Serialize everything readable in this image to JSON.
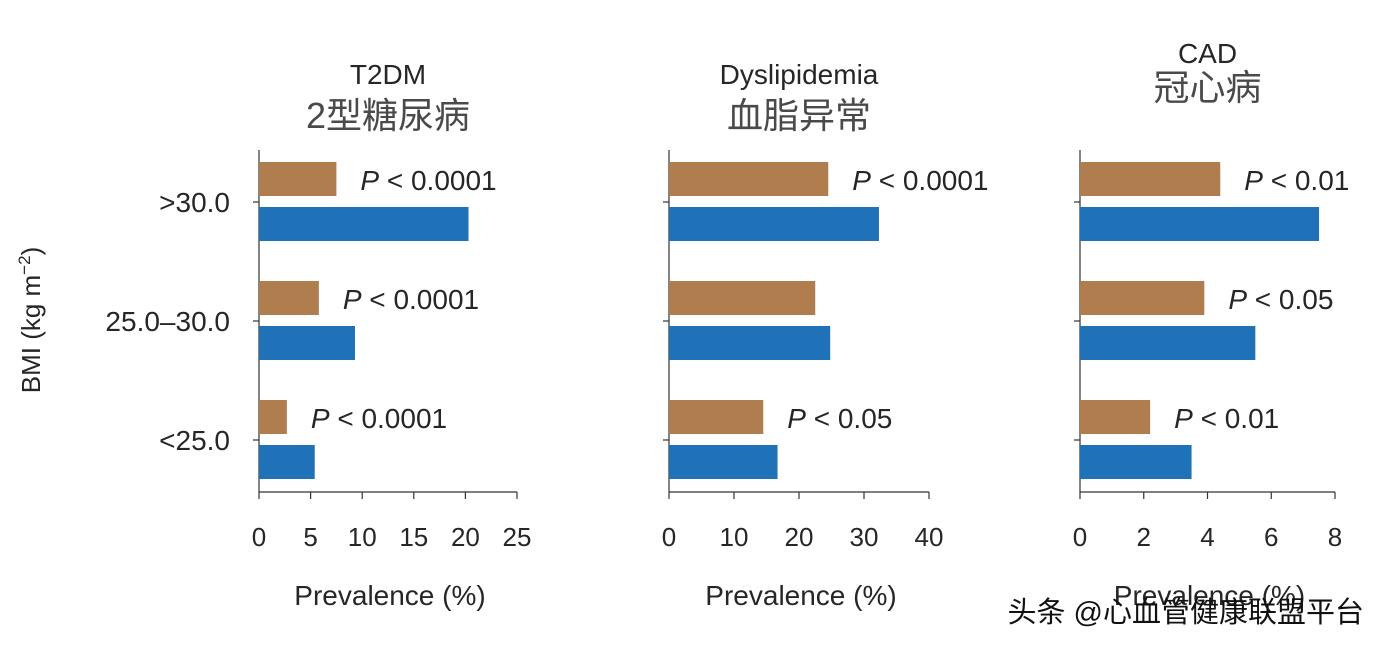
{
  "figure": {
    "ylabel_main": "BMI (kg m",
    "ylabel_sup": "−2",
    "ylabel_close": ")",
    "watermark": "头条 @心血管健康联盟平台"
  },
  "colors": {
    "brown": "#B07D4E",
    "blue": "#1F72B8",
    "axis": "#333333",
    "text": "#262626"
  },
  "categories": [
    ">30.0",
    "25.0–30.0",
    "<25.0"
  ],
  "chart_data": [
    {
      "type": "bar",
      "orientation": "horizontal",
      "title": "T2DM",
      "subtitle": "2型糖尿病",
      "categories": [
        ">30.0",
        "25.0–30.0",
        "<25.0"
      ],
      "series": [
        {
          "name": "brown series",
          "color": "#B07D4E",
          "values": [
            7.5,
            5.8,
            2.7
          ]
        },
        {
          "name": "blue series",
          "color": "#1F72B8",
          "values": [
            20.3,
            9.3,
            5.4
          ]
        }
      ],
      "pvalues": [
        "P < 0.0001",
        "P < 0.0001",
        "P < 0.0001"
      ],
      "xlim": [
        0,
        25
      ],
      "xticks": [
        0,
        5,
        10,
        15,
        20,
        25
      ],
      "xlabel": "Prevalence (%)"
    },
    {
      "type": "bar",
      "orientation": "horizontal",
      "title": "Dyslipidemia",
      "subtitle": "血脂异常",
      "categories": [
        ">30.0",
        "25.0–30.0",
        "<25.0"
      ],
      "series": [
        {
          "name": "brown series",
          "color": "#B07D4E",
          "values": [
            24.5,
            22.5,
            14.5
          ]
        },
        {
          "name": "blue series",
          "color": "#1F72B8",
          "values": [
            32.3,
            24.8,
            16.7
          ]
        }
      ],
      "pvalues": [
        "P < 0.0001",
        "",
        "P < 0.05"
      ],
      "xlim": [
        0,
        40
      ],
      "xticks": [
        0,
        10,
        20,
        30,
        40
      ],
      "xlabel": "Prevalence (%)"
    },
    {
      "type": "bar",
      "orientation": "horizontal",
      "title": "CAD",
      "subtitle": "冠心病",
      "categories": [
        ">30.0",
        "25.0–30.0",
        "<25.0"
      ],
      "series": [
        {
          "name": "brown series",
          "color": "#B07D4E",
          "values": [
            4.4,
            3.9,
            2.2
          ]
        },
        {
          "name": "blue series",
          "color": "#1F72B8",
          "values": [
            7.5,
            5.5,
            3.5
          ]
        }
      ],
      "pvalues": [
        "P < 0.01",
        "P < 0.05",
        "P < 0.01"
      ],
      "xlim": [
        0,
        8
      ],
      "xticks": [
        0,
        2,
        4,
        6,
        8
      ],
      "xlabel": "Prevalence (%)"
    }
  ]
}
